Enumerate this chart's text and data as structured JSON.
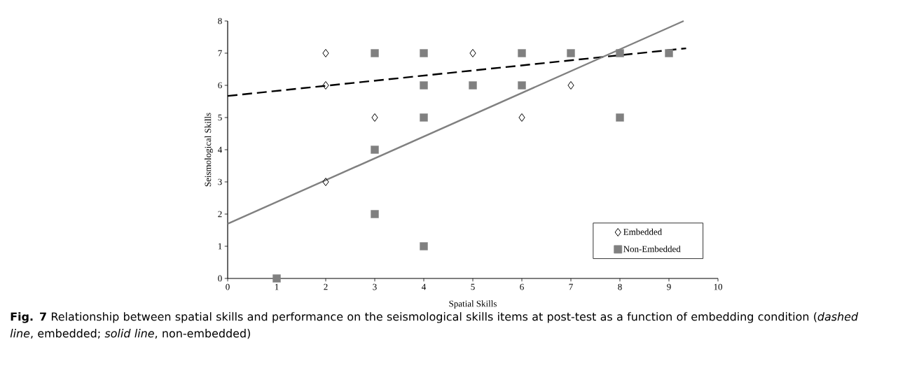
{
  "chart_data": {
    "type": "scatter",
    "xlabel": "Spatial Skills",
    "ylabel": "Seismological Skills",
    "xlim": [
      0,
      10
    ],
    "xticks": [
      0,
      1,
      2,
      3,
      4,
      5,
      6,
      7,
      8,
      9,
      10
    ],
    "ylim": [
      0,
      8
    ],
    "yticks": [
      0,
      1,
      2,
      3,
      4,
      5,
      6,
      7,
      8
    ],
    "legend": "bottom right",
    "grid": false,
    "series": [
      {
        "name": "Embedded",
        "marker": "diamond",
        "color": "#000000",
        "x": [
          2,
          2,
          2,
          3,
          5,
          6,
          7
        ],
        "values": [
          7,
          6,
          3,
          5,
          7,
          5,
          6
        ]
      },
      {
        "name": "Non-Embedded",
        "marker": "square",
        "color": "#808080",
        "x": [
          1,
          3,
          3,
          3,
          4,
          4,
          4,
          4,
          5,
          6,
          6,
          7,
          8,
          8,
          9
        ],
        "values": [
          0,
          7,
          4,
          2,
          7,
          6,
          5,
          1,
          6,
          7,
          6,
          7,
          7,
          5,
          7
        ]
      },
      {
        "type": "line",
        "line_style": "dashed",
        "color": "#000000",
        "x": [
          0,
          9.35
        ],
        "values": [
          5.67,
          7.15
        ]
      },
      {
        "type": "line",
        "line_style": "solid",
        "color": "#808080",
        "x": [
          0,
          9.3
        ],
        "values": [
          1.7,
          8.0
        ]
      }
    ],
    "annotations": [
      "**Fig. 7** Relationship between spatial skills and performance on the seismological skills items at post-test as a function of embedding condition (*dashed line*, embedded; *solid line*, non-embedded)"
    ]
  }
}
